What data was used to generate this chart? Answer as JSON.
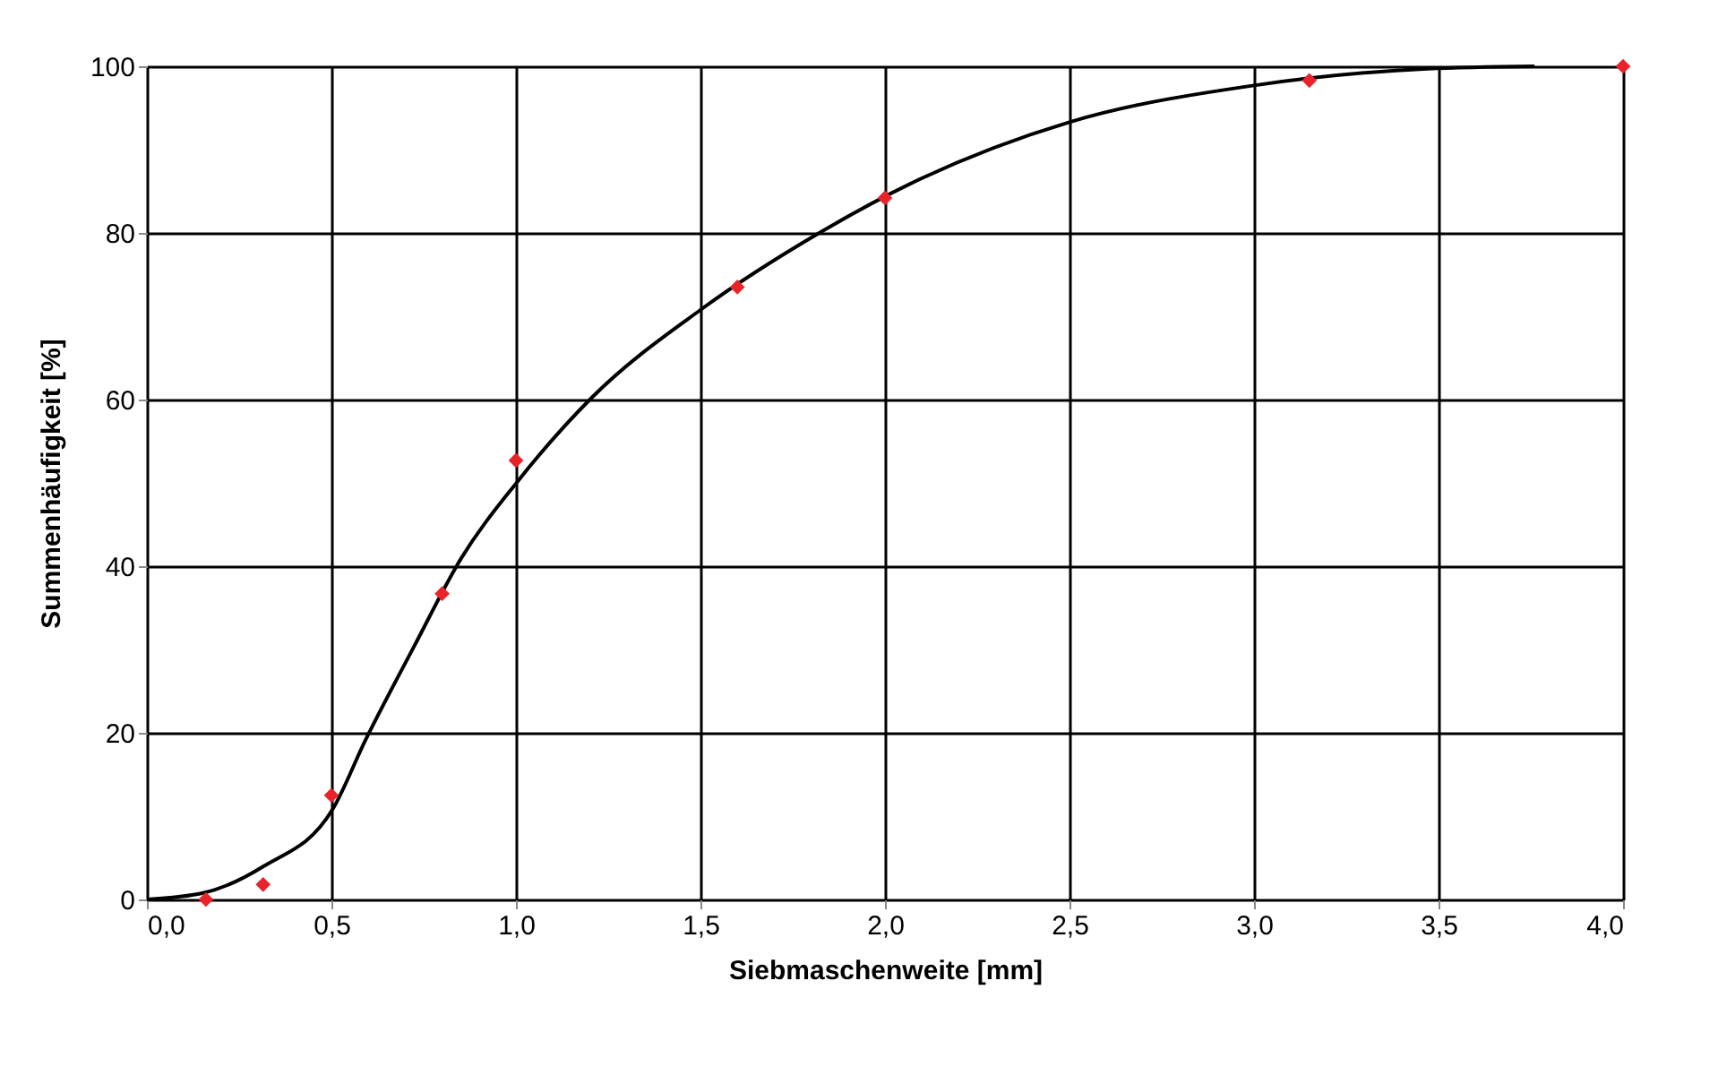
{
  "chart_data": {
    "type": "scatter",
    "xlabel": "Siebmaschenweite [mm]",
    "ylabel": "Summenhäufigkeit [%]",
    "xlim": [
      0,
      4
    ],
    "ylim": [
      0,
      100
    ],
    "xticks": [
      {
        "value": 0,
        "label": "0,0"
      },
      {
        "value": 0.5,
        "label": "0,5"
      },
      {
        "value": 1,
        "label": "1,0"
      },
      {
        "value": 1.5,
        "label": "1,5"
      },
      {
        "value": 2,
        "label": "2,0"
      },
      {
        "value": 2.5,
        "label": "2,5"
      },
      {
        "value": 3,
        "label": "3,0"
      },
      {
        "value": 3.5,
        "label": "3,5"
      },
      {
        "value": 4,
        "label": "4,0"
      }
    ],
    "yticks": [
      0,
      20,
      40,
      60,
      80,
      100
    ],
    "grid": true,
    "series": [
      {
        "type": "line",
        "color": "#000000",
        "marker": "none",
        "line_style": "solid",
        "x": [
          0,
          0.155,
          0.317,
          0.503,
          0.592,
          0.722,
          0.851,
          1.005,
          1.207,
          1.498,
          1.822,
          2.097,
          2.5,
          3.0,
          3.47,
          3.76
        ],
        "values": [
          0,
          0.8,
          4.0,
          10.8,
          19.1,
          30.2,
          40.9,
          50.2,
          60.3,
          70.7,
          80.0,
          86.5,
          93.3,
          97.7,
          99.7,
          100
        ]
      },
      {
        "type": "scatter",
        "color": "#e8242a",
        "marker": "diamond",
        "x": [
          0.16,
          0.315,
          0.5,
          0.8,
          1.0,
          1.6,
          2.0,
          3.15,
          4.0
        ],
        "values": [
          0,
          1.8,
          12.5,
          36.7,
          52.7,
          73.5,
          84.2,
          98.3,
          100
        ]
      }
    ]
  }
}
